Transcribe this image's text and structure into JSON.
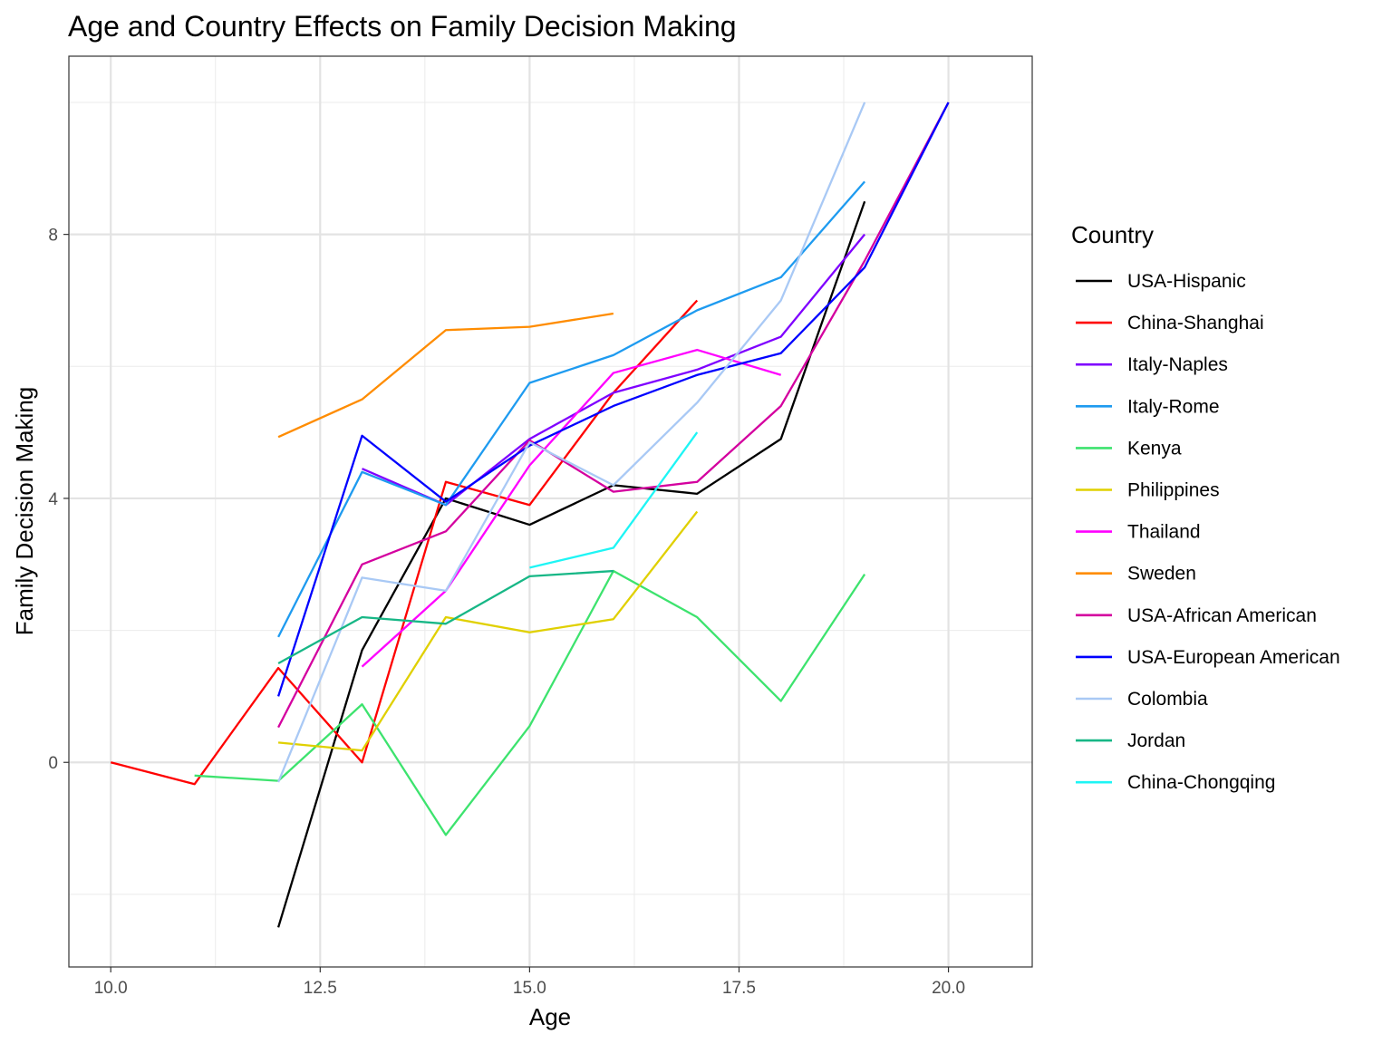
{
  "chart_data": {
    "type": "line",
    "title": "Age and Country Effects on Family Decision Making",
    "xlabel": "Age",
    "ylabel": "Family Decision Making",
    "xlim": [
      9.5,
      21.0
    ],
    "ylim": [
      -3.1,
      10.7
    ],
    "x_ticks": [
      10.0,
      12.5,
      15.0,
      17.5,
      20.0
    ],
    "x_tick_labels": [
      "10.0",
      "12.5",
      "15.0",
      "17.5",
      "20.0"
    ],
    "y_ticks": [
      0,
      4,
      8
    ],
    "y_tick_labels": [
      "0",
      "4",
      "8"
    ],
    "grid": true,
    "legend": {
      "title": "Country",
      "position": "right"
    },
    "series": [
      {
        "name": "USA-Hispanic",
        "color": "#000000",
        "x": [
          12,
          13,
          14,
          15,
          16,
          17,
          18,
          19
        ],
        "y": [
          -2.5,
          1.7,
          4.0,
          3.6,
          4.2,
          4.07,
          4.9,
          8.5
        ]
      },
      {
        "name": "China-Shanghai",
        "color": "#ff0000",
        "x": [
          10,
          11,
          12,
          13,
          14,
          15,
          16,
          17
        ],
        "y": [
          0.0,
          -0.33,
          1.43,
          0.0,
          4.25,
          3.9,
          5.6,
          7.0
        ]
      },
      {
        "name": "Italy-Naples",
        "color": "#7f00ff",
        "x": [
          13,
          14,
          15,
          16,
          17,
          18,
          19
        ],
        "y": [
          4.45,
          3.9,
          4.9,
          5.6,
          5.95,
          6.45,
          8.0
        ]
      },
      {
        "name": "Italy-Rome",
        "color": "#1e9bf0",
        "x": [
          12,
          13,
          14,
          15,
          16,
          17,
          18,
          19
        ],
        "y": [
          1.9,
          4.4,
          3.9,
          5.75,
          6.17,
          6.85,
          7.35,
          8.8
        ]
      },
      {
        "name": "Kenya",
        "color": "#3de36e",
        "x": [
          11,
          12,
          13,
          14,
          15,
          16,
          17,
          18,
          19
        ],
        "y": [
          -0.2,
          -0.28,
          0.88,
          -1.1,
          0.55,
          2.9,
          2.2,
          0.93,
          2.85
        ]
      },
      {
        "name": "Philippines",
        "color": "#e0d000",
        "x": [
          12,
          13,
          14,
          15,
          16,
          17
        ],
        "y": [
          0.3,
          0.18,
          2.2,
          1.97,
          2.17,
          3.8
        ]
      },
      {
        "name": "Thailand",
        "color": "#ff00ff",
        "x": [
          13,
          14,
          15,
          16,
          17,
          18
        ],
        "y": [
          1.45,
          2.6,
          4.5,
          5.9,
          6.25,
          5.87
        ]
      },
      {
        "name": "Sweden",
        "color": "#ff8c00",
        "x": [
          12,
          13,
          14,
          15,
          16
        ],
        "y": [
          4.93,
          5.5,
          6.55,
          6.6,
          6.8
        ]
      },
      {
        "name": "USA-African American",
        "color": "#d4009f",
        "x": [
          12,
          13,
          14,
          15,
          16,
          17,
          18,
          19,
          20
        ],
        "y": [
          0.53,
          3.0,
          3.5,
          4.88,
          4.1,
          4.25,
          5.4,
          7.6,
          10.0
        ]
      },
      {
        "name": "USA-European American",
        "color": "#0000ff",
        "x": [
          12,
          13,
          14,
          15,
          16,
          17,
          18,
          19,
          20
        ],
        "y": [
          1.0,
          4.95,
          3.95,
          4.8,
          5.4,
          5.87,
          6.2,
          7.5,
          10.0
        ]
      },
      {
        "name": "Colombia",
        "color": "#a9c9f5",
        "x": [
          12,
          13,
          14,
          15,
          16,
          17,
          18,
          19
        ],
        "y": [
          -0.3,
          2.8,
          2.6,
          4.85,
          4.2,
          5.45,
          7.0,
          10.0
        ]
      },
      {
        "name": "Jordan",
        "color": "#17b786",
        "x": [
          12,
          13,
          14,
          15,
          16
        ],
        "y": [
          1.5,
          2.2,
          2.1,
          2.82,
          2.9
        ]
      },
      {
        "name": "China-Chongqing",
        "color": "#1ef5f5",
        "x": [
          15,
          16,
          17
        ],
        "y": [
          2.95,
          3.25,
          5.0
        ]
      }
    ]
  }
}
